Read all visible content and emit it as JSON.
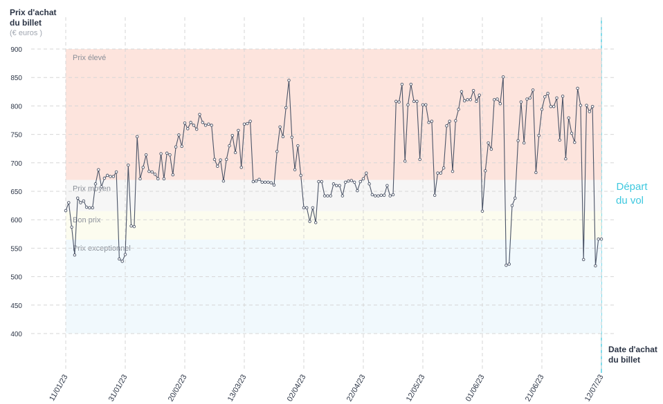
{
  "chart_data": {
    "type": "line",
    "y_title": [
      "Prix d'achat",
      "du billet"
    ],
    "y_unit": "(€ euros )",
    "x_title": [
      "Date d'achat",
      "du billet"
    ],
    "annotation": [
      "Départ",
      "du vol"
    ],
    "bands": [
      {
        "name": "Prix élevé",
        "from": 670,
        "to": 900,
        "color": "#fde4dd"
      },
      {
        "name": "Prix moyen",
        "from": 615,
        "to": 670,
        "color": "#f6f6f6"
      },
      {
        "name": "Bon prix",
        "from": 565,
        "to": 615,
        "color": "#fcfcef"
      },
      {
        "name": "Prix exceptionnel",
        "from": 400,
        "to": 565,
        "color": "#f1f9fd"
      }
    ],
    "categories": [
      "11/01/23",
      null,
      null,
      null,
      null,
      null,
      null,
      null,
      null,
      null,
      null,
      null,
      null,
      null,
      null,
      null,
      null,
      null,
      null,
      null,
      "31/01/23",
      null,
      null,
      null,
      null,
      null,
      null,
      null,
      null,
      null,
      null,
      null,
      null,
      null,
      null,
      null,
      null,
      null,
      null,
      null,
      "20/02/23",
      null,
      null,
      null,
      null,
      null,
      null,
      null,
      null,
      null,
      null,
      null,
      null,
      null,
      null,
      null,
      null,
      null,
      null,
      null,
      "13/03/23",
      null,
      null,
      null,
      null,
      null,
      null,
      null,
      null,
      null,
      null,
      null,
      null,
      null,
      null,
      null,
      null,
      null,
      null,
      null,
      "02/04/23",
      null,
      null,
      null,
      null,
      null,
      null,
      null,
      null,
      null,
      null,
      null,
      null,
      null,
      null,
      null,
      null,
      null,
      null,
      null,
      "22/04/23",
      null,
      null,
      null,
      null,
      null,
      null,
      null,
      null,
      null,
      null,
      null,
      null,
      null,
      null,
      null,
      null,
      null,
      null,
      null,
      "12/05/23",
      null,
      null,
      null,
      null,
      null,
      null,
      null,
      null,
      null,
      null,
      null,
      null,
      null,
      null,
      null,
      null,
      null,
      null,
      null,
      "01/06/23",
      null,
      null,
      null,
      null,
      null,
      null,
      null,
      null,
      null,
      null,
      null,
      null,
      null,
      null,
      null,
      null,
      null,
      null,
      null,
      "21/06/23",
      null,
      null,
      null,
      null,
      null,
      null,
      null,
      null,
      null,
      null,
      null,
      null,
      null,
      null,
      null,
      null,
      null,
      null,
      null,
      "12/07/23"
    ],
    "series": [
      {
        "color": "#4a5366",
        "values": [
          616,
          630,
          587,
          538,
          638,
          630,
          633,
          622,
          621,
          621,
          663,
          688,
          658,
          673,
          678,
          676,
          676,
          684,
          531,
          527,
          539,
          696,
          589,
          588,
          746,
          672,
          692,
          714,
          685,
          684,
          680,
          672,
          716,
          672,
          717,
          714,
          679,
          728,
          749,
          729,
          770,
          760,
          771,
          766,
          759,
          785,
          771,
          766,
          768,
          766,
          706,
          694,
          705,
          668,
          706,
          730,
          748,
          718,
          757,
          692,
          768,
          769,
          773,
          667,
          668,
          671,
          666,
          666,
          666,
          665,
          661,
          720,
          763,
          746,
          797,
          845,
          745,
          688,
          730,
          678,
          621,
          621,
          597,
          621,
          595,
          667,
          667,
          642,
          642,
          642,
          663,
          660,
          660,
          642,
          666,
          668,
          669,
          666,
          651,
          667,
          672,
          682,
          663,
          644,
          642,
          642,
          643,
          643,
          660,
          642,
          644,
          808,
          807,
          838,
          703,
          802,
          838,
          808,
          808,
          706,
          802,
          802,
          771,
          773,
          643,
          682,
          682,
          691,
          765,
          773,
          685,
          774,
          794,
          825,
          809,
          811,
          811,
          827,
          808,
          819,
          615,
          686,
          735,
          724,
          811,
          812,
          804,
          851,
          520,
          522,
          625,
          638,
          739,
          807,
          735,
          812,
          814,
          828,
          683,
          748,
          794,
          816,
          822,
          799,
          799,
          814,
          740,
          817,
          707,
          779,
          752,
          736,
          831,
          801,
          530,
          801,
          790,
          799,
          519,
          566,
          566
        ]
      }
    ],
    "ylim": [
      400,
      900
    ],
    "yticks": [
      400,
      450,
      500,
      550,
      600,
      650,
      700,
      750,
      800,
      850,
      900
    ],
    "grid": true
  }
}
